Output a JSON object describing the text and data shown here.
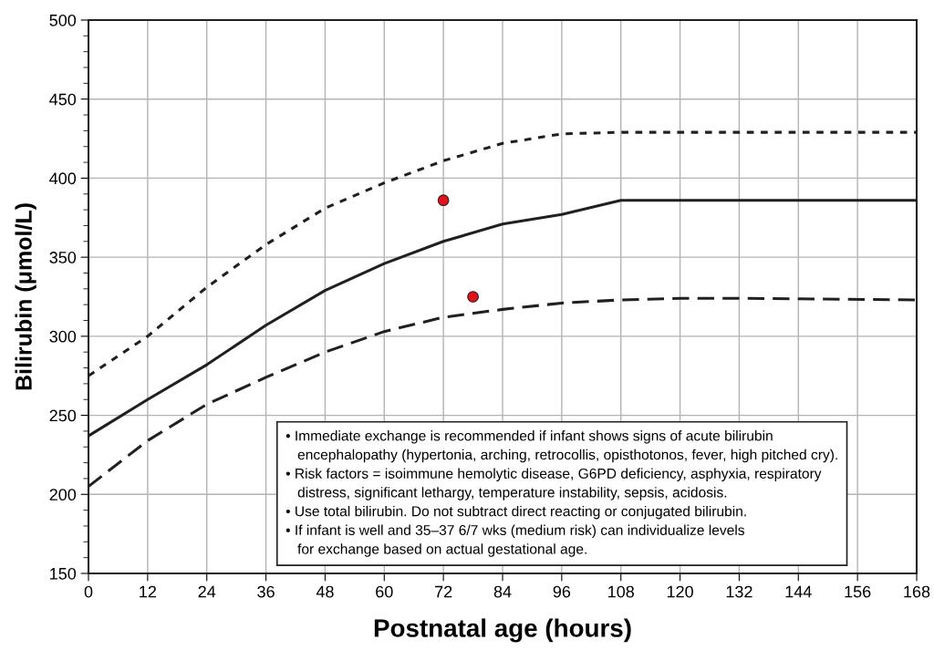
{
  "chart_data": {
    "type": "line",
    "xlabel": "Postnatal age (hours)",
    "ylabel": "Bilirubin (μmol/L)",
    "xlim": [
      0,
      168
    ],
    "xticks": [
      0,
      12,
      24,
      36,
      48,
      60,
      72,
      84,
      96,
      108,
      120,
      132,
      144,
      156,
      168
    ],
    "ylim": [
      150,
      500
    ],
    "yticks": [
      150,
      200,
      250,
      300,
      350,
      400,
      450,
      500
    ],
    "grid": true,
    "legend": false,
    "series": [
      {
        "type": "line",
        "color": "#231f20",
        "line_style": "dotted",
        "x": [
          0,
          12,
          24,
          36,
          48,
          60,
          72,
          84,
          96,
          108,
          168
        ],
        "values": [
          275,
          300,
          331,
          358,
          381,
          397,
          411,
          422,
          428,
          429,
          429
        ]
      },
      {
        "type": "line",
        "color": "#231f20",
        "line_style": "solid",
        "x": [
          0,
          12,
          24,
          36,
          48,
          60,
          72,
          84,
          96,
          108,
          168
        ],
        "values": [
          237,
          260,
          282,
          307,
          329,
          346,
          360,
          371,
          377,
          386,
          386
        ]
      },
      {
        "type": "line",
        "color": "#231f20",
        "line_style": "dashed",
        "x": [
          0,
          12,
          24,
          36,
          48,
          60,
          72,
          84,
          96,
          108,
          120,
          132,
          168
        ],
        "values": [
          205,
          234,
          257,
          274,
          290,
          303,
          312,
          317,
          321,
          323,
          324,
          324,
          323
        ]
      },
      {
        "type": "scatter",
        "color": "#e4111b",
        "marker": "circle",
        "x": [
          72,
          78
        ],
        "values": [
          386,
          325
        ]
      }
    ],
    "annotations": [
      "• Immediate exchange is recommended if infant shows signs of acute bilirubin\n   encephalopathy (hypertonia, arching, retrocollis, opisthotonos, fever, high pitched cry).",
      "• Risk factors = isoimmune hemolytic disease, G6PD deficiency, asphyxia, respiratory\n   distress, significant lethargy, temperature instability, sepsis, acidosis.",
      "• Use total bilirubin. Do not subtract direct reacting or conjugated bilirubin.",
      "• If infant is well and 35–37 6/7 wks (medium risk) can individualize levels\n   for exchange based on actual gestational age."
    ]
  }
}
